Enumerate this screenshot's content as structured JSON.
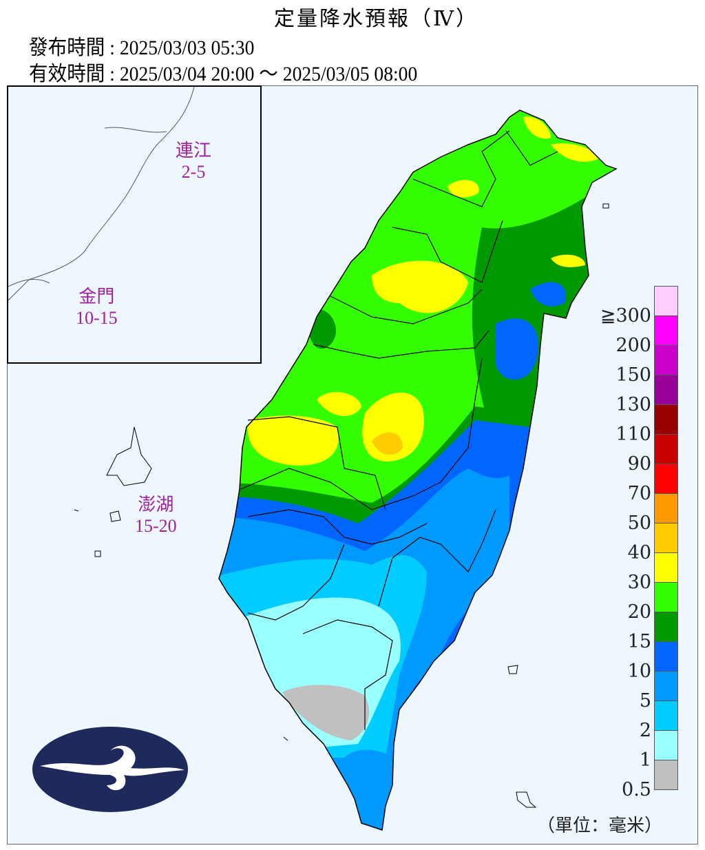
{
  "header": {
    "title": "定量降水預報（Ⅳ）",
    "issued": "發布時間 : 2025/03/03 05:30",
    "valid": "有效時間 : 2025/03/04 20:00 ～ 2025/03/05 08:00"
  },
  "islands": [
    {
      "name": "連江",
      "range": "2-5"
    },
    {
      "name": "金門",
      "range": "10-15"
    },
    {
      "name": "澎湖",
      "range": "15-20"
    }
  ],
  "legend": {
    "unit": "（單位：毫米）",
    "colors": [
      "#ffccff",
      "#ff00ff",
      "#cc00cc",
      "#990099",
      "#990000",
      "#cc0000",
      "#ff0000",
      "#ff9900",
      "#ffcc00",
      "#ffff00",
      "#33ff00",
      "#009900",
      "#0066ff",
      "#0099ff",
      "#00ccff",
      "#99ffff",
      "#c0c0c0"
    ],
    "labels": [
      "≧300",
      "200",
      "150",
      "130",
      "110",
      "90",
      "70",
      "50",
      "40",
      "30",
      "20",
      "15",
      "10",
      "5",
      "2",
      "1",
      "0.5"
    ]
  },
  "logo": "central-weather-administration-logo"
}
